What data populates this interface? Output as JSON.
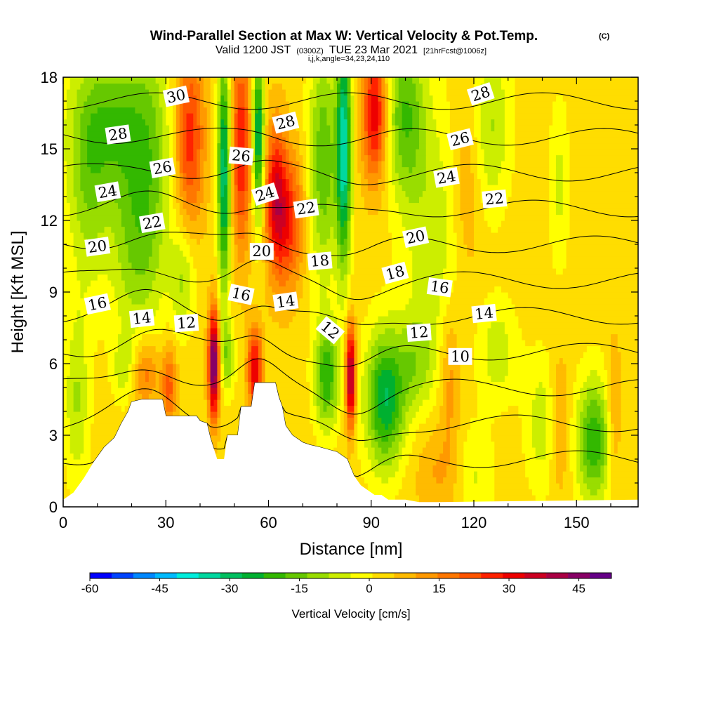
{
  "chart_data": {
    "type": "heatmap",
    "title": "Wind-Parallel Section at Max W: Vertical Velocity & Pot.Temp.",
    "copyright_mark": "(C)",
    "subtitle": {
      "main_start": "Valid 1200 JST",
      "utc": "(0300Z)",
      "main_end": "TUE 23 Mar 2021",
      "forecast": "[21hrFcst@1006z]"
    },
    "params": "i,j,k,angle=34,23,24,110",
    "xlabel": "Distance [nm]",
    "ylabel": "Height [Kft MSL]",
    "xlim": [
      0,
      168
    ],
    "ylim": [
      0,
      18
    ],
    "x_ticks": [
      0,
      30,
      60,
      90,
      120,
      150
    ],
    "y_ticks": [
      0,
      3,
      6,
      9,
      12,
      15,
      18
    ],
    "colorbar": {
      "label": "Vertical Velocity [cm/s]",
      "range": [
        -60,
        52
      ],
      "ticks": [
        -60,
        -45,
        -30,
        -15,
        0,
        15,
        30,
        45
      ],
      "colors": [
        "#0000ff",
        "#0044ff",
        "#0088ff",
        "#00bbff",
        "#00eedd",
        "#00d8a0",
        "#00c060",
        "#00b030",
        "#33b800",
        "#66c800",
        "#99dd00",
        "#ccee00",
        "#ffff00",
        "#ffdd00",
        "#ffbb00",
        "#ff9900",
        "#ff7700",
        "#ff5500",
        "#ff2200",
        "#ee0000",
        "#cc0022",
        "#aa0044",
        "#880066",
        "#660088"
      ]
    },
    "velocity_field": {
      "background": 3,
      "cells": [
        {
          "x": 37,
          "y": 15.5,
          "sx": 3.0,
          "sy": 2.6,
          "w": 24
        },
        {
          "x": 47,
          "y": 14.0,
          "sx": 1.3,
          "sy": 3.5,
          "w": -35
        },
        {
          "x": 52,
          "y": 15.0,
          "sx": 2.0,
          "sy": 3.0,
          "w": 26
        },
        {
          "x": 57,
          "y": 15.5,
          "sx": 1.2,
          "sy": 2.5,
          "w": -33
        },
        {
          "x": 62,
          "y": 13.0,
          "sx": 2.2,
          "sy": 2.2,
          "w": 26
        },
        {
          "x": 66,
          "y": 12.0,
          "sx": 3.0,
          "sy": 2.0,
          "w": 22
        },
        {
          "x": 76,
          "y": 14.5,
          "sx": 3.0,
          "sy": 3.5,
          "w": -20
        },
        {
          "x": 82,
          "y": 15.0,
          "sx": 1.5,
          "sy": 3.5,
          "w": -38
        },
        {
          "x": 91,
          "y": 16.5,
          "sx": 2.5,
          "sy": 2.0,
          "w": 30
        },
        {
          "x": 100,
          "y": 16.5,
          "sx": 4.0,
          "sy": 2.5,
          "w": -20
        },
        {
          "x": 13,
          "y": 16.0,
          "sx": 8.0,
          "sy": 2.5,
          "w": -20
        },
        {
          "x": 25,
          "y": 14.0,
          "sx": 5.0,
          "sy": 4.0,
          "w": -15
        },
        {
          "x": 7,
          "y": 12.5,
          "sx": 4.0,
          "sy": 3.0,
          "w": -10
        },
        {
          "x": 20,
          "y": 10.5,
          "sx": 5.0,
          "sy": 2.5,
          "w": -10
        },
        {
          "x": 35,
          "y": 9.5,
          "sx": 2.5,
          "sy": 1.5,
          "w": -12
        },
        {
          "x": 44,
          "y": 6.0,
          "sx": 1.1,
          "sy": 1.6,
          "w": 48
        },
        {
          "x": 48,
          "y": 6.3,
          "sx": 1.5,
          "sy": 1.0,
          "w": -15
        },
        {
          "x": 56,
          "y": 5.8,
          "sx": 1.5,
          "sy": 1.2,
          "w": 30
        },
        {
          "x": 31,
          "y": 5.0,
          "sx": 1.5,
          "sy": 1.2,
          "w": 18
        },
        {
          "x": 24,
          "y": 5.6,
          "sx": 3.0,
          "sy": 1.0,
          "w": 15
        },
        {
          "x": 18,
          "y": 5.8,
          "sx": 2.5,
          "sy": 1.0,
          "w": -10
        },
        {
          "x": 4,
          "y": 4.5,
          "sx": 2.5,
          "sy": 2.5,
          "w": -12
        },
        {
          "x": 77,
          "y": 5.5,
          "sx": 2.5,
          "sy": 1.5,
          "w": -25
        },
        {
          "x": 84,
          "y": 5.5,
          "sx": 1.0,
          "sy": 1.5,
          "w": 42
        },
        {
          "x": 94,
          "y": 4.5,
          "sx": 4.0,
          "sy": 2.0,
          "w": -30
        },
        {
          "x": 103,
          "y": 6.0,
          "sx": 4.0,
          "sy": 1.5,
          "w": -12
        },
        {
          "x": 113,
          "y": 5.5,
          "sx": 2.0,
          "sy": 2.0,
          "w": 10
        },
        {
          "x": 108,
          "y": 11.5,
          "sx": 6.0,
          "sy": 4.0,
          "w": -10
        },
        {
          "x": 118,
          "y": 13.5,
          "sx": 3.0,
          "sy": 3.0,
          "w": 8
        },
        {
          "x": 125,
          "y": 16.0,
          "sx": 4.0,
          "sy": 2.5,
          "w": -12
        },
        {
          "x": 127,
          "y": 6.5,
          "sx": 4.0,
          "sy": 1.5,
          "w": -10
        },
        {
          "x": 140,
          "y": 3.5,
          "sx": 3.5,
          "sy": 2.0,
          "w": -10
        },
        {
          "x": 145,
          "y": 3.5,
          "sx": 2.0,
          "sy": 2.0,
          "w": 10
        },
        {
          "x": 155,
          "y": 2.8,
          "sx": 3.5,
          "sy": 1.8,
          "w": -25
        },
        {
          "x": 145,
          "y": 13.5,
          "sx": 2.0,
          "sy": 2.5,
          "w": -8
        },
        {
          "x": 161,
          "y": 4.0,
          "sx": 1.5,
          "sy": 2.0,
          "w": 10
        },
        {
          "x": 110,
          "y": 1.5,
          "sx": 5.0,
          "sy": 1.5,
          "w": 8
        },
        {
          "x": 120,
          "y": 1.3,
          "sx": 4.0,
          "sy": 1.5,
          "w": -8
        }
      ]
    },
    "terrain_profile": [
      [
        0,
        0.3
      ],
      [
        3,
        0.6
      ],
      [
        6,
        1.2
      ],
      [
        9,
        1.9
      ],
      [
        12,
        2.5
      ],
      [
        15,
        2.9
      ],
      [
        17,
        3.5
      ],
      [
        19,
        4.0
      ],
      [
        20,
        4.4
      ],
      [
        23,
        4.5
      ],
      [
        29,
        4.5
      ],
      [
        30,
        3.8
      ],
      [
        39,
        3.8
      ],
      [
        40,
        3.6
      ],
      [
        42,
        3.5
      ],
      [
        43,
        2.9
      ],
      [
        45,
        2.0
      ],
      [
        47,
        2.0
      ],
      [
        48,
        3.0
      ],
      [
        51,
        3.0
      ],
      [
        52,
        4.2
      ],
      [
        55,
        4.2
      ],
      [
        56,
        5.2
      ],
      [
        62,
        5.2
      ],
      [
        63,
        4.6
      ],
      [
        64,
        4.2
      ],
      [
        65,
        3.4
      ],
      [
        67,
        3.0
      ],
      [
        70,
        2.7
      ],
      [
        72,
        2.6
      ],
      [
        75,
        2.5
      ],
      [
        80,
        2.3
      ],
      [
        83,
        2.0
      ],
      [
        85,
        1.3
      ],
      [
        87,
        0.9
      ],
      [
        89,
        0.7
      ],
      [
        91,
        0.5
      ],
      [
        93,
        0.5
      ],
      [
        95,
        0.3
      ],
      [
        100,
        0.3
      ],
      [
        104,
        0.2
      ],
      [
        110,
        0.2
      ],
      [
        168,
        0.3
      ]
    ],
    "isentrope_values": [
      10,
      12,
      14,
      16,
      18,
      20,
      22,
      24,
      26,
      28,
      30
    ],
    "isentrope_labels": [
      {
        "text": "30",
        "x": 33,
        "y": 17.2,
        "angle": -12
      },
      {
        "text": "28",
        "x": 16,
        "y": 15.6,
        "angle": -8
      },
      {
        "text": "26",
        "x": 29,
        "y": 14.2,
        "angle": -10
      },
      {
        "text": "24",
        "x": 13,
        "y": 13.2,
        "angle": -10
      },
      {
        "text": "22",
        "x": 26,
        "y": 11.9,
        "angle": -10
      },
      {
        "text": "20",
        "x": 10,
        "y": 10.9,
        "angle": -8
      },
      {
        "text": "16",
        "x": 10,
        "y": 8.5,
        "angle": -12
      },
      {
        "text": "14",
        "x": 23,
        "y": 7.9,
        "angle": -6
      },
      {
        "text": "12",
        "x": 36,
        "y": 7.7,
        "angle": -4
      },
      {
        "text": "16",
        "x": 52,
        "y": 8.9,
        "angle": 12
      },
      {
        "text": "14",
        "x": 65,
        "y": 8.6,
        "angle": -8
      },
      {
        "text": "26",
        "x": 52,
        "y": 14.7,
        "angle": 5
      },
      {
        "text": "24",
        "x": 59,
        "y": 13.1,
        "angle": -18
      },
      {
        "text": "20",
        "x": 58,
        "y": 10.7,
        "angle": 0
      },
      {
        "text": "28",
        "x": 65,
        "y": 16.1,
        "angle": -14
      },
      {
        "text": "22",
        "x": 71,
        "y": 12.5,
        "angle": -8
      },
      {
        "text": "18",
        "x": 75,
        "y": 10.3,
        "angle": -5
      },
      {
        "text": "12",
        "x": 78,
        "y": 7.4,
        "angle": 40
      },
      {
        "text": "18",
        "x": 97,
        "y": 9.8,
        "angle": -15
      },
      {
        "text": "20",
        "x": 103,
        "y": 11.3,
        "angle": -12
      },
      {
        "text": "16",
        "x": 110,
        "y": 9.2,
        "angle": 8
      },
      {
        "text": "14",
        "x": 123,
        "y": 8.1,
        "angle": -6
      },
      {
        "text": "12",
        "x": 104,
        "y": 7.3,
        "angle": -4
      },
      {
        "text": "10",
        "x": 116,
        "y": 6.3,
        "angle": 0
      },
      {
        "text": "24",
        "x": 112,
        "y": 13.8,
        "angle": -10
      },
      {
        "text": "26",
        "x": 116,
        "y": 15.4,
        "angle": -14
      },
      {
        "text": "22",
        "x": 126,
        "y": 12.9,
        "angle": -5
      },
      {
        "text": "28",
        "x": 122,
        "y": 17.3,
        "angle": -18
      }
    ]
  }
}
